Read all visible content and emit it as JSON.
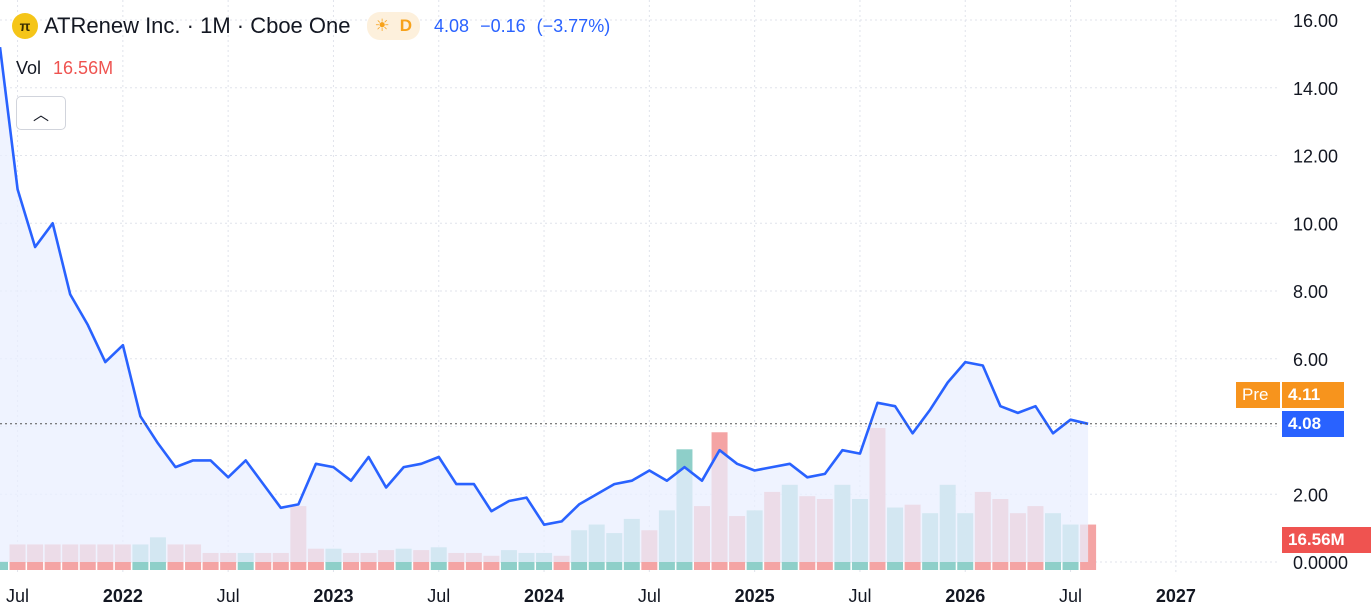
{
  "header": {
    "logo_letter": "π",
    "title": "ATRenew Inc. · 1M · Cboe One",
    "session_icon": "sun-icon",
    "delay_badge": "D",
    "price": "4.08",
    "change": "−0.16",
    "change_pct": "(−3.77%)"
  },
  "volume": {
    "label": "Vol",
    "value": "16.56M"
  },
  "collapse_icon": "chevron-up-icon",
  "price_tags": {
    "pre_label": "Pre",
    "pre_value": "4.11",
    "last_value": "4.08",
    "volume_value": "16.56M"
  },
  "colors": {
    "line": "#2962ff",
    "area_fill": "#e9efff",
    "up_volume": "#8ecfc9",
    "down_volume": "#f4a4a4",
    "pre_tag": "#f7941d",
    "last_tag": "#2962ff",
    "vol_tag": "#ef5350",
    "text_blue": "#2962ff"
  },
  "chart_data": {
    "type": "line",
    "frequency": "1M",
    "x_tick_labels": [
      "Jul",
      "2022",
      "Jul",
      "2023",
      "Jul",
      "2024",
      "Jul",
      "2025",
      "Jul",
      "2026",
      "Jul",
      "2027"
    ],
    "y_tick_labels": [
      "0.0000",
      "2.00",
      "4.00",
      "6.00",
      "8.00",
      "10.00",
      "12.00",
      "14.00",
      "16.00"
    ],
    "ylim": [
      0,
      16
    ],
    "grid": true,
    "start": "2021-06",
    "series": [
      {
        "values": [
          15.2,
          11.0,
          9.3,
          10.0,
          7.9,
          7.0,
          5.9,
          6.4,
          4.3,
          3.5,
          2.8,
          3.0,
          3.0,
          2.5,
          3.0,
          2.3,
          1.6,
          1.7,
          2.9,
          2.8,
          2.4,
          3.1,
          2.2,
          2.8,
          2.9,
          3.1,
          2.3,
          2.3,
          1.5,
          1.8,
          1.9,
          1.1,
          1.2,
          1.7,
          2.0,
          2.3,
          2.4,
          2.7,
          2.4,
          2.8,
          2.4,
          3.3,
          2.9,
          2.7,
          2.8,
          2.9,
          2.5,
          2.6,
          3.3,
          3.2,
          4.7,
          4.6,
          3.8,
          4.5,
          5.3,
          5.9,
          5.8,
          4.6,
          4.4,
          4.6,
          3.8,
          4.2,
          4.08
        ]
      }
    ],
    "volume": {
      "values": [
        0.06,
        0.18,
        0.18,
        0.18,
        0.18,
        0.18,
        0.18,
        0.18,
        0.18,
        0.23,
        0.18,
        0.18,
        0.12,
        0.12,
        0.12,
        0.12,
        0.12,
        0.45,
        0.15,
        0.15,
        0.12,
        0.12,
        0.14,
        0.15,
        0.14,
        0.16,
        0.12,
        0.12,
        0.1,
        0.14,
        0.12,
        0.12,
        0.1,
        0.28,
        0.32,
        0.26,
        0.36,
        0.28,
        0.42,
        0.85,
        0.45,
        0.97,
        0.38,
        0.42,
        0.55,
        0.6,
        0.52,
        0.5,
        0.6,
        0.5,
        1.0,
        0.44,
        0.46,
        0.4,
        0.6,
        0.4,
        0.55,
        0.5,
        0.4,
        0.45,
        0.4,
        0.32,
        0.32
      ],
      "direction": [
        "up",
        "down",
        "down",
        "down",
        "down",
        "down",
        "down",
        "down",
        "up",
        "up",
        "down",
        "down",
        "down",
        "down",
        "up",
        "down",
        "down",
        "down",
        "down",
        "up",
        "down",
        "down",
        "down",
        "up",
        "down",
        "up",
        "down",
        "down",
        "down",
        "up",
        "up",
        "up",
        "down",
        "up",
        "up",
        "up",
        "up",
        "down",
        "up",
        "up",
        "down",
        "down",
        "down",
        "up",
        "down",
        "up",
        "down",
        "down",
        "up",
        "up",
        "down",
        "up",
        "down",
        "up",
        "up",
        "up",
        "down",
        "down",
        "down",
        "down",
        "up",
        "up",
        "down"
      ],
      "last_value": "16.56M"
    }
  }
}
